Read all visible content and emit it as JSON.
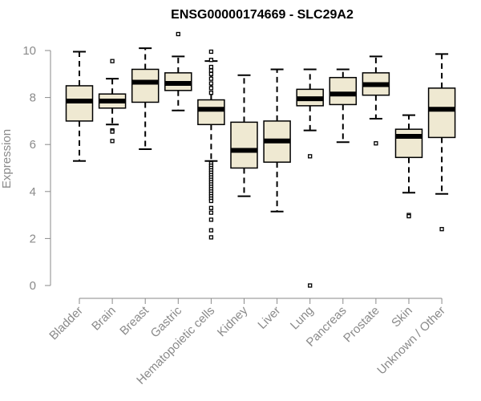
{
  "chart_data": {
    "type": "boxplot",
    "title": "ENSG00000174669 - SLC29A2",
    "xlabel": "",
    "ylabel": "Expression",
    "ylim": [
      0,
      10
    ],
    "yticks": [
      "0",
      "2",
      "4",
      "6",
      "8",
      "10"
    ],
    "colors": {
      "box_fill": "#efe9d2",
      "outline": "#000000",
      "axis": "#8a8a8a"
    },
    "categories": [
      "Bladder",
      "Brain",
      "Breast",
      "Gastric",
      "Hematopoietic cells",
      "Kidney",
      "Liver",
      "Lung",
      "Pancreas",
      "Prostate",
      "Skin",
      "Unknown / Other"
    ],
    "boxes": [
      {
        "name": "Bladder",
        "whisker_low": 5.3,
        "q1": 7.0,
        "median": 7.85,
        "q3": 8.5,
        "whisker_high": 9.95,
        "outliers": []
      },
      {
        "name": "Brain",
        "whisker_low": 6.85,
        "q1": 7.55,
        "median": 7.85,
        "q3": 8.15,
        "whisker_high": 8.8,
        "outliers": [
          9.55,
          6.6,
          6.55,
          6.15
        ]
      },
      {
        "name": "Breast",
        "whisker_low": 5.8,
        "q1": 7.8,
        "median": 8.65,
        "q3": 9.2,
        "whisker_high": 10.1,
        "outliers": []
      },
      {
        "name": "Gastric",
        "whisker_low": 7.45,
        "q1": 8.3,
        "median": 8.6,
        "q3": 9.05,
        "whisker_high": 9.75,
        "outliers": [
          10.7
        ]
      },
      {
        "name": "Hematopoietic cells",
        "whisker_low": 5.3,
        "q1": 6.85,
        "median": 7.5,
        "q3": 7.9,
        "whisker_high": 9.55,
        "outliers": [
          9.95,
          9.6,
          9.3,
          9.15,
          9.0,
          8.8,
          8.6,
          8.4,
          8.2,
          5.2,
          5.1,
          5.0,
          4.9,
          4.8,
          4.7,
          4.6,
          4.5,
          4.4,
          4.3,
          4.2,
          4.1,
          4.0,
          3.9,
          3.8,
          3.7,
          3.6,
          3.3,
          3.1,
          2.8,
          2.35,
          2.05
        ]
      },
      {
        "name": "Kidney",
        "whisker_low": 3.8,
        "q1": 5.0,
        "median": 5.75,
        "q3": 6.95,
        "whisker_high": 8.95,
        "outliers": []
      },
      {
        "name": "Liver",
        "whisker_low": 3.15,
        "q1": 5.25,
        "median": 6.15,
        "q3": 7.0,
        "whisker_high": 9.2,
        "outliers": []
      },
      {
        "name": "Lung",
        "whisker_low": 6.6,
        "q1": 7.65,
        "median": 7.95,
        "q3": 8.35,
        "whisker_high": 9.2,
        "outliers": [
          5.5,
          0.0
        ]
      },
      {
        "name": "Pancreas",
        "whisker_low": 6.1,
        "q1": 7.7,
        "median": 8.15,
        "q3": 8.85,
        "whisker_high": 9.2,
        "outliers": []
      },
      {
        "name": "Prostate",
        "whisker_low": 7.1,
        "q1": 8.1,
        "median": 8.55,
        "q3": 9.05,
        "whisker_high": 9.75,
        "outliers": [
          6.05
        ]
      },
      {
        "name": "Skin",
        "whisker_low": 3.95,
        "q1": 5.45,
        "median": 6.35,
        "q3": 6.65,
        "whisker_high": 7.25,
        "outliers": [
          3.0,
          2.95
        ]
      },
      {
        "name": "Unknown / Other",
        "whisker_low": 3.9,
        "q1": 6.3,
        "median": 7.5,
        "q3": 8.4,
        "whisker_high": 9.85,
        "outliers": [
          2.4
        ]
      }
    ]
  }
}
